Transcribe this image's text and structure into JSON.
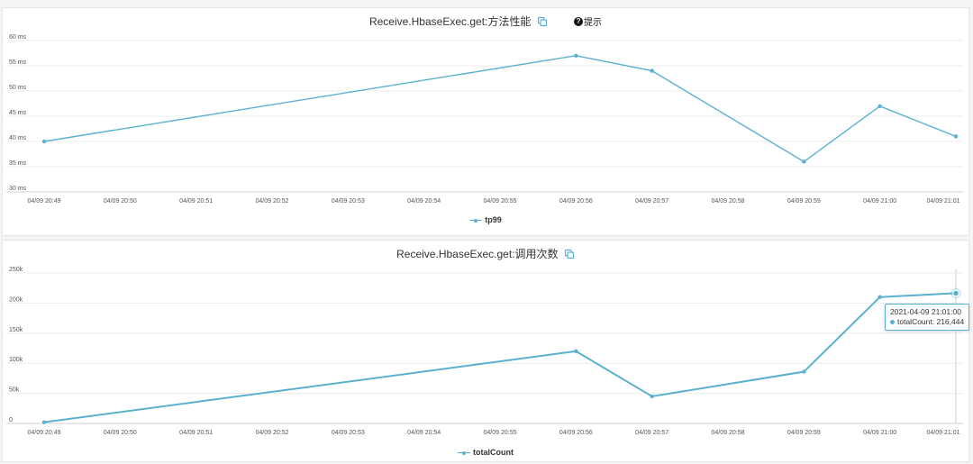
{
  "colors": {
    "series": "#5ab0d1",
    "grid": "#ececec",
    "axis": "#cfcfcf",
    "text": "#333333"
  },
  "charts": [
    {
      "title": "Receive.HbaseExec.get:方法性能",
      "hint_label": "提示",
      "hint_icon": "question-circle-icon",
      "copy_icon": "copy-icon",
      "legend": "tp99"
    },
    {
      "title": "Receive.HbaseExec.get:调用次数",
      "copy_icon": "copy-icon",
      "legend": "totalCount",
      "tooltip": {
        "time": "2021-04-09 21:01:00",
        "label": "totalCount: 216,444"
      }
    }
  ],
  "chart_data": [
    {
      "type": "line",
      "title": "Receive.HbaseExec.get:方法性能",
      "categories": [
        "04/09 20:49",
        "04/09 20:50",
        "04/09 20:51",
        "04/09 20:52",
        "04/09 20:53",
        "04/09 20:54",
        "04/09 20:55",
        "04/09 20:56",
        "04/09 20:57",
        "04/09 20:58",
        "04/09 20:59",
        "04/09 21:00",
        "04/09 21:01"
      ],
      "ylim": [
        30,
        60
      ],
      "yticks": [
        30,
        35,
        40,
        45,
        50,
        55,
        60
      ],
      "ytick_labels": [
        "30 ms",
        "35 ms",
        "40 ms",
        "45 ms",
        "50 ms",
        "55 ms",
        "60 ms"
      ],
      "points": [
        {
          "x": "04/09 20:49",
          "y": 40
        },
        {
          "x": "04/09 20:56",
          "y": 57
        },
        {
          "x": "04/09 20:57",
          "y": 54
        },
        {
          "x": "04/09 20:59",
          "y": 36
        },
        {
          "x": "04/09 21:00",
          "y": 47
        },
        {
          "x": "04/09 21:01",
          "y": 41
        }
      ],
      "series": [
        {
          "name": "tp99"
        }
      ],
      "grid": true,
      "legend": "bottom-center"
    },
    {
      "type": "line",
      "title": "Receive.HbaseExec.get:调用次数",
      "categories": [
        "04/09 20:49",
        "04/09 20:50",
        "04/09 20:51",
        "04/09 20:52",
        "04/09 20:53",
        "04/09 20:54",
        "04/09 20:55",
        "04/09 20:56",
        "04/09 20:57",
        "04/09 20:58",
        "04/09 20:59",
        "04/09 21:00",
        "04/09 21:01"
      ],
      "ylim": [
        0,
        250000
      ],
      "yticks": [
        0,
        50000,
        100000,
        150000,
        200000,
        250000
      ],
      "ytick_labels": [
        "0",
        "50k",
        "100k",
        "150k",
        "200k",
        "250k"
      ],
      "points": [
        {
          "x": "04/09 20:49",
          "y": 2000
        },
        {
          "x": "04/09 20:56",
          "y": 120000
        },
        {
          "x": "04/09 20:57",
          "y": 45000
        },
        {
          "x": "04/09 20:59",
          "y": 86000
        },
        {
          "x": "04/09 21:00",
          "y": 210000
        },
        {
          "x": "04/09 21:01",
          "y": 216444
        }
      ],
      "series": [
        {
          "name": "totalCount"
        }
      ],
      "grid": true,
      "legend": "bottom-center",
      "highlight": "04/09 21:01"
    }
  ]
}
